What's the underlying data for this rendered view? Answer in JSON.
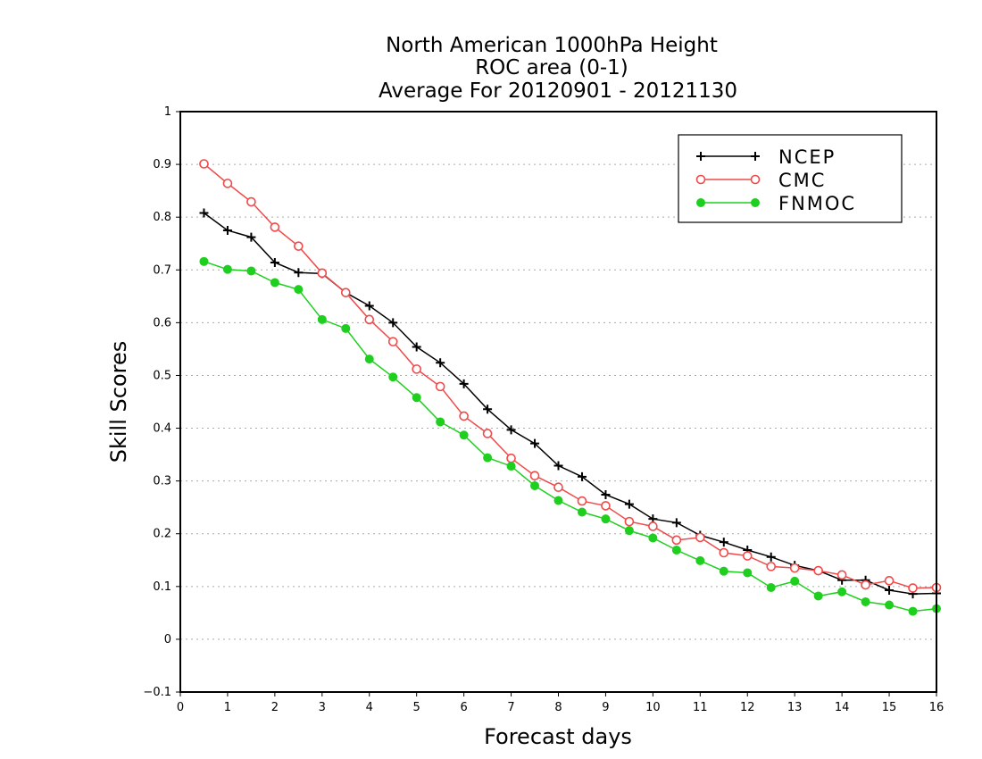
{
  "chart_data": {
    "type": "line",
    "title_lines": [
      "North American 1000hPa Height",
      "ROC area (0-1)",
      "Average For 20120901 - 20121130"
    ],
    "xlabel": "Forecast days",
    "ylabel": "Skill Scores",
    "xlim": [
      0,
      16
    ],
    "ylim": [
      -0.1,
      1
    ],
    "x_ticks": [
      "0",
      "1",
      "2",
      "3",
      "4",
      "5",
      "6",
      "7",
      "8",
      "9",
      "10",
      "11",
      "12",
      "13",
      "14",
      "15",
      "16"
    ],
    "y_ticks": [
      "−0.1",
      "0",
      "0.1",
      "0.2",
      "0.3",
      "0.4",
      "0.5",
      "0.6",
      "0.7",
      "0.8",
      "0.9",
      "1"
    ],
    "grid": true,
    "legend_position": "top-right",
    "x": [
      0.5,
      1,
      1.5,
      2,
      2.5,
      3,
      3.5,
      4,
      4.5,
      5,
      5.5,
      6,
      6.5,
      7,
      7.5,
      8,
      8.5,
      9,
      9.5,
      10,
      10.5,
      11,
      11.5,
      12,
      12.5,
      13,
      13.5,
      14,
      14.5,
      15,
      15.5,
      16
    ],
    "series": [
      {
        "name": "NCEP",
        "color": "#000000",
        "marker": "plus",
        "values": [
          0.808,
          0.775,
          0.762,
          0.714,
          0.695,
          0.693,
          0.657,
          0.632,
          0.6,
          0.554,
          0.524,
          0.484,
          0.436,
          0.397,
          0.371,
          0.329,
          0.308,
          0.274,
          0.256,
          0.228,
          0.221,
          0.197,
          0.184,
          0.169,
          0.156,
          0.14,
          0.13,
          0.112,
          0.112,
          0.093,
          0.086,
          0.087
        ]
      },
      {
        "name": "CMC",
        "color": "#f04a4a",
        "marker": "open-circle",
        "values": [
          0.901,
          0.864,
          0.829,
          0.781,
          0.745,
          0.694,
          0.657,
          0.606,
          0.564,
          0.512,
          0.479,
          0.423,
          0.39,
          0.343,
          0.31,
          0.288,
          0.262,
          0.253,
          0.223,
          0.214,
          0.188,
          0.193,
          0.164,
          0.158,
          0.138,
          0.135,
          0.13,
          0.122,
          0.103,
          0.111,
          0.097,
          0.098
        ]
      },
      {
        "name": "FNMOC",
        "color": "#1fcf1f",
        "marker": "filled-circle",
        "values": [
          0.716,
          0.701,
          0.698,
          0.676,
          0.663,
          0.606,
          0.589,
          0.531,
          0.497,
          0.458,
          0.412,
          0.387,
          0.344,
          0.328,
          0.291,
          0.263,
          0.241,
          0.228,
          0.206,
          0.192,
          0.169,
          0.149,
          0.129,
          0.126,
          0.098,
          0.11,
          0.082,
          0.09,
          0.071,
          0.065,
          0.053,
          0.058
        ]
      }
    ]
  }
}
